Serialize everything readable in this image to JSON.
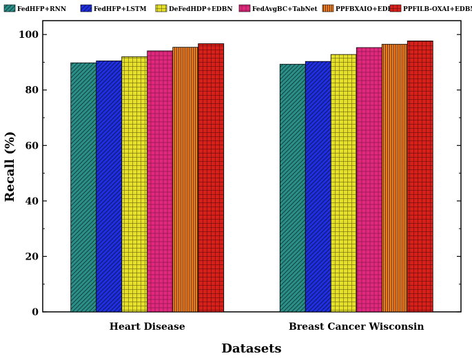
{
  "chart_data": {
    "type": "bar",
    "title": "",
    "xlabel": "Datasets",
    "ylabel": "Recall (%)",
    "ylim": [
      0,
      105
    ],
    "yticks": [
      0,
      20,
      40,
      60,
      80,
      100
    ],
    "categories": [
      "Heart Disease",
      "Breast Cancer Wisconsin"
    ],
    "legend_position": "top",
    "series": [
      {
        "name": "FedHFP+RNN",
        "values": [
          89.8,
          89.3
        ],
        "color": "#2a8f88",
        "pattern": "diagonal"
      },
      {
        "name": "FedHFP+LSTM",
        "values": [
          90.5,
          90.3
        ],
        "color": "#1f2fe0",
        "pattern": "diagonal"
      },
      {
        "name": "DeFedHDP+EDBN",
        "values": [
          92.0,
          92.8
        ],
        "color": "#e6e02a",
        "pattern": "grid"
      },
      {
        "name": "FedAvgBC+TabNet",
        "values": [
          94.1,
          95.3
        ],
        "color": "#e0287d",
        "pattern": "dense"
      },
      {
        "name": "PPFBXAIO+EDBN",
        "values": [
          95.4,
          96.5
        ],
        "color": "#ee7f1c",
        "pattern": "vertical"
      },
      {
        "name": "PPFILB-OXAI+EDBN",
        "values": [
          96.7,
          97.7
        ],
        "color": "#d8201a",
        "pattern": "grid"
      }
    ]
  }
}
